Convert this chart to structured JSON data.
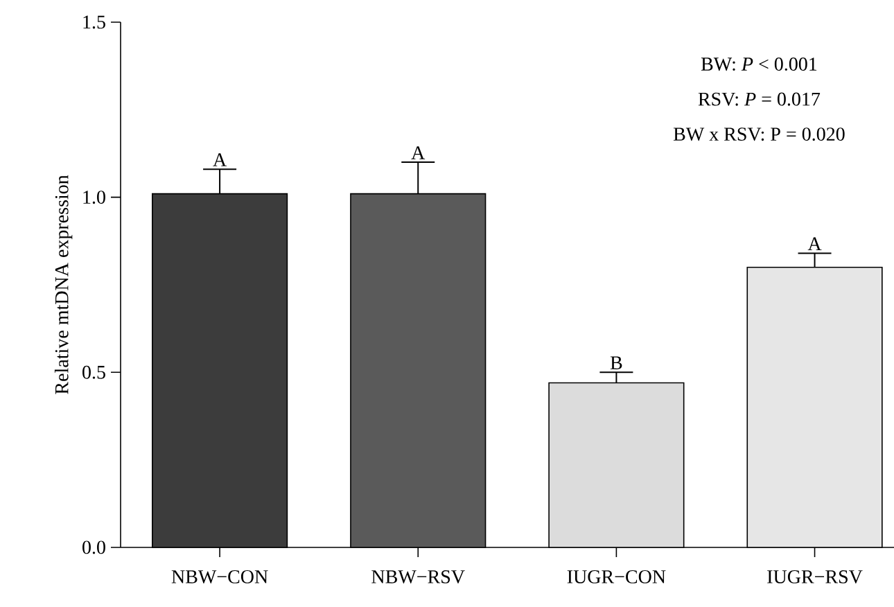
{
  "chart_data": {
    "type": "bar",
    "ylabel": "Relative mtDNA expression",
    "categories": [
      "NBW−CON",
      "NBW−RSV",
      "IUGR−CON",
      "IUGR−RSV"
    ],
    "values": [
      1.01,
      1.01,
      0.47,
      0.8
    ],
    "errors": [
      [
        1.01,
        1.08
      ],
      [
        1.01,
        1.1
      ],
      [
        0.47,
        0.5
      ],
      [
        0.8,
        0.84
      ]
    ],
    "colors": [
      "#3c3c3c",
      "#5a5a5a",
      "#dcdcdc",
      "#e6e6e6"
    ],
    "ylim": [
      0,
      1.5
    ],
    "yticks": [
      {
        "value": 0,
        "label": "0.0"
      },
      {
        "value": 0.5,
        "label": "0.5"
      },
      {
        "value": 1,
        "label": "1.0"
      },
      {
        "value": 1.5,
        "label": "1.5"
      }
    ],
    "annotations": [
      {
        "text": "A",
        "x": "NBW−CON",
        "y": 1.08
      },
      {
        "text": "A",
        "x": "NBW−RSV",
        "y": 1.1
      },
      {
        "text": "B",
        "x": "IUGR−CON",
        "y": 0.5
      },
      {
        "text": "A",
        "x": "IUGR−RSV",
        "y": 0.84
      },
      "BW: *P* < 0.001",
      "RSV: *P* = 0.017",
      "BW x RSV: P = 0.020"
    ]
  }
}
